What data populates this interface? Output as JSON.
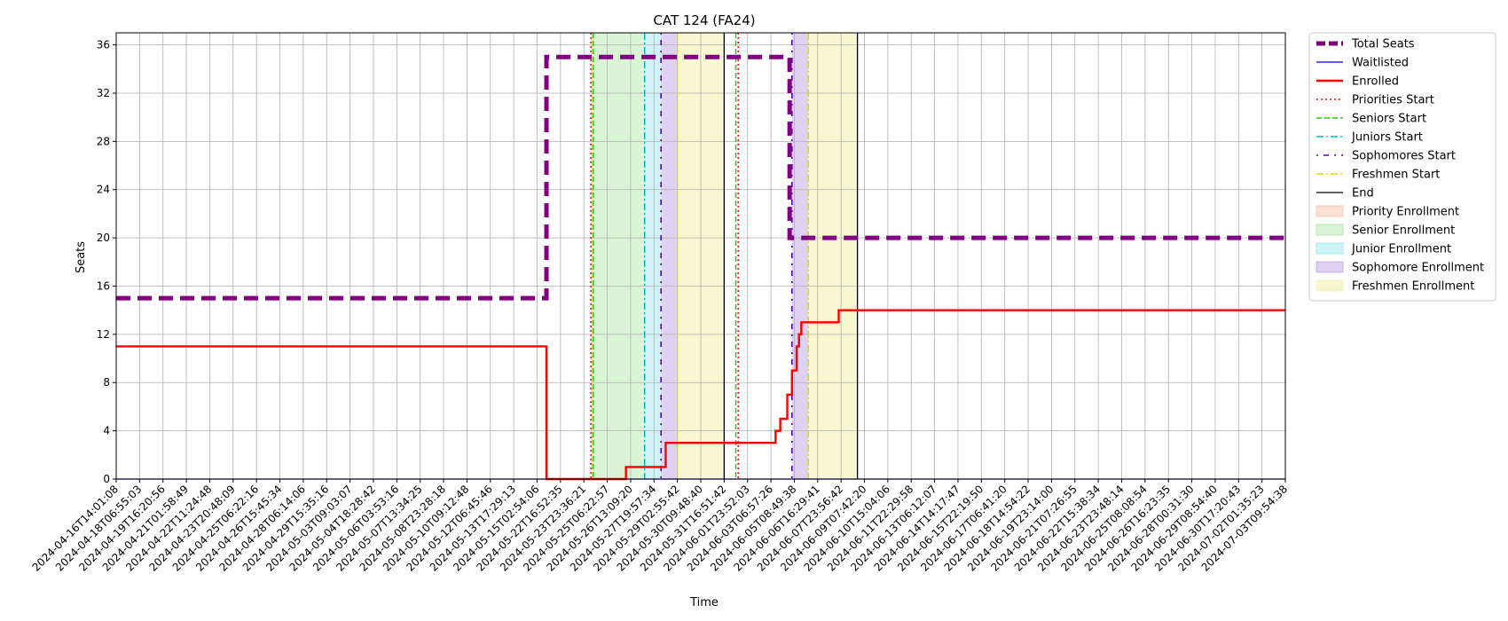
{
  "chart_data": {
    "type": "line",
    "title": "CAT 124 (FA24)",
    "xlabel": "Time",
    "ylabel": "Seats",
    "ylim": [
      0,
      37
    ],
    "yticks": [
      0,
      4,
      8,
      12,
      16,
      20,
      24,
      28,
      32,
      36
    ],
    "grid": true,
    "legend_position": "outside-right",
    "x_range": [
      "2024-04-16T14:01:08",
      "2024-07-05T09:54:38"
    ],
    "xtick_labels": [
      "2024-04-16T14:01:08",
      "2024-04-18T06:55:03",
      "2024-04-19T16:20:56",
      "2024-04-21T01:58:49",
      "2024-04-22T11:24:48",
      "2024-04-23T20:48:09",
      "2024-04-25T06:22:16",
      "2024-04-26T15:45:34",
      "2024-04-28T06:14:06",
      "2024-04-29T15:35:16",
      "2024-05-03T09:03:07",
      "2024-05-04T18:28:42",
      "2024-05-06T03:53:16",
      "2024-05-07T13:34:25",
      "2024-05-08T23:28:18",
      "2024-05-10T09:12:48",
      "2024-05-12T06:45:46",
      "2024-05-13T17:29:13",
      "2024-05-15T02:54:06",
      "2024-05-22T16:52:35",
      "2024-05-23T23:36:21",
      "2024-05-25T06:22:57",
      "2024-05-26T13:09:20",
      "2024-05-27T19:57:34",
      "2024-05-29T02:55:42",
      "2024-05-30T09:48:40",
      "2024-05-31T16:51:42",
      "2024-06-01T23:52:03",
      "2024-06-03T06:57:26",
      "2024-06-05T08:49:38",
      "2024-06-06T16:29:41",
      "2024-06-07T23:56:42",
      "2024-06-09T07:42:20",
      "2024-06-10T15:04:06",
      "2024-06-11T22:29:58",
      "2024-06-13T06:12:07",
      "2024-06-14T14:17:47",
      "2024-06-15T22:19:50",
      "2024-06-17T06:41:20",
      "2024-06-18T14:54:22",
      "2024-06-19T23:14:00",
      "2024-06-21T07:26:55",
      "2024-06-22T15:38:34",
      "2024-06-23T23:48:14",
      "2024-06-25T08:08:54",
      "2024-06-26T16:23:35",
      "2024-06-28T00:31:30",
      "2024-06-29T08:54:40",
      "2024-06-30T17:20:43",
      "2024-07-02T01:35:23",
      "2024-07-03T09:54:38"
    ],
    "series": [
      {
        "name": "Total Seats",
        "color": "#800080",
        "style": "dashed-thick",
        "points": [
          [
            0,
            15
          ],
          [
            18.4,
            15
          ],
          [
            18.4,
            35
          ],
          [
            28.8,
            35
          ],
          [
            28.8,
            20
          ],
          [
            50.0,
            20
          ]
        ]
      },
      {
        "name": "Waitlisted",
        "color": "#0000ff",
        "style": "solid",
        "points": [
          [
            0,
            0
          ],
          [
            50.0,
            0
          ]
        ]
      },
      {
        "name": "Enrolled",
        "color": "#ff0000",
        "style": "solid-thick",
        "points": [
          [
            0,
            11
          ],
          [
            18.4,
            11
          ],
          [
            18.4,
            0
          ],
          [
            21.8,
            0
          ],
          [
            21.8,
            1
          ],
          [
            23.5,
            1
          ],
          [
            23.5,
            3
          ],
          [
            28.2,
            3
          ],
          [
            28.2,
            4
          ],
          [
            28.4,
            4
          ],
          [
            28.4,
            5
          ],
          [
            28.7,
            5
          ],
          [
            28.7,
            7
          ],
          [
            28.9,
            7
          ],
          [
            28.9,
            9
          ],
          [
            29.1,
            9
          ],
          [
            29.1,
            11
          ],
          [
            29.2,
            11
          ],
          [
            29.2,
            12
          ],
          [
            29.3,
            12
          ],
          [
            29.3,
            13
          ],
          [
            30.9,
            13
          ],
          [
            30.9,
            14
          ],
          [
            50.0,
            14
          ]
        ]
      }
    ],
    "vertical_markers": [
      {
        "name": "Priorities Start",
        "color": "#ff0000",
        "style": "dotted",
        "x": 20.3
      },
      {
        "name": "Priorities Start",
        "color": "#ff0000",
        "style": "dotted",
        "x": 26.6
      },
      {
        "name": "Seniors Start",
        "color": "#22cc00",
        "style": "dashed",
        "x": 20.4
      },
      {
        "name": "Seniors Start",
        "color": "#22cc00",
        "style": "dashed",
        "x": 26.5
      },
      {
        "name": "Juniors Start",
        "color": "#00bfbf",
        "style": "dashdot",
        "x": 22.6
      },
      {
        "name": "Sophomores Start",
        "color": "#5500cc",
        "style": "dot-dash-sparse",
        "x": 23.3
      },
      {
        "name": "Sophomores Start",
        "color": "#5500cc",
        "style": "dot-dash-sparse",
        "x": 28.9
      },
      {
        "name": "Freshmen Start",
        "color": "#dddd00",
        "style": "dashdot",
        "x": 24.0
      },
      {
        "name": "Freshmen Start",
        "color": "#dddd00",
        "style": "dashdot",
        "x": 29.6
      },
      {
        "name": "End",
        "color": "#000000",
        "style": "solid",
        "x": 26.0
      },
      {
        "name": "End",
        "color": "#000000",
        "style": "solid",
        "x": 31.7
      }
    ],
    "shaded_regions": [
      {
        "name": "Priority Enrollment",
        "color": "#f4a582",
        "alpha": 0.35,
        "x0": 20.3,
        "x1": 20.4
      },
      {
        "name": "Senior Enrollment",
        "color": "#7fdc6f",
        "alpha": 0.3,
        "x0": 20.4,
        "x1": 22.6
      },
      {
        "name": "Junior Enrollment",
        "color": "#5fd6e0",
        "alpha": 0.3,
        "x0": 22.6,
        "x1": 23.3
      },
      {
        "name": "Sophomore Enrollment",
        "color": "#a07ad8",
        "alpha": 0.35,
        "x0": 23.3,
        "x1": 24.0
      },
      {
        "name": "Freshmen Enrollment",
        "color": "#eeee99",
        "alpha": 0.45,
        "x0": 24.0,
        "x1": 26.0
      },
      {
        "name": "Sophomore Enrollment",
        "color": "#a07ad8",
        "alpha": 0.35,
        "x0": 28.9,
        "x1": 29.6
      },
      {
        "name": "Freshmen Enrollment",
        "color": "#eeee99",
        "alpha": 0.45,
        "x0": 29.6,
        "x1": 31.7
      }
    ],
    "legend": [
      {
        "label": "Total Seats",
        "kind": "line",
        "color": "#800080",
        "style": "dashed-thick"
      },
      {
        "label": "Waitlisted",
        "kind": "line",
        "color": "#0000ff",
        "style": "solid"
      },
      {
        "label": "Enrolled",
        "kind": "line",
        "color": "#ff0000",
        "style": "solid-thick"
      },
      {
        "label": "Priorities Start",
        "kind": "line",
        "color": "#ff0000",
        "style": "dotted"
      },
      {
        "label": "Seniors Start",
        "kind": "line",
        "color": "#22cc00",
        "style": "dashed"
      },
      {
        "label": "Juniors Start",
        "kind": "line",
        "color": "#00bfbf",
        "style": "dashdot"
      },
      {
        "label": "Sophomores Start",
        "kind": "line",
        "color": "#5500cc",
        "style": "dot-dash-sparse"
      },
      {
        "label": "Freshmen Start",
        "kind": "line",
        "color": "#dddd00",
        "style": "dashdot"
      },
      {
        "label": "End",
        "kind": "line",
        "color": "#000000",
        "style": "solid"
      },
      {
        "label": "Priority Enrollment",
        "kind": "patch",
        "color": "#f4a582",
        "alpha": 0.35
      },
      {
        "label": "Senior Enrollment",
        "kind": "patch",
        "color": "#7fdc6f",
        "alpha": 0.3
      },
      {
        "label": "Junior Enrollment",
        "kind": "patch",
        "color": "#5fd6e0",
        "alpha": 0.3
      },
      {
        "label": "Sophomore Enrollment",
        "kind": "patch",
        "color": "#a07ad8",
        "alpha": 0.35
      },
      {
        "label": "Freshmen Enrollment",
        "kind": "patch",
        "color": "#eeee99",
        "alpha": 0.45
      }
    ]
  }
}
